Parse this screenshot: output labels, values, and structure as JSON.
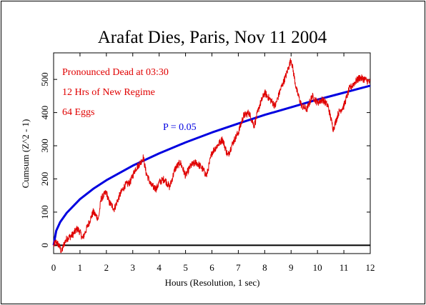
{
  "chart_data": {
    "type": "line",
    "title": "Arafat Dies, Paris, Nov 11 2004",
    "xlabel": "Hours (Resolution, 1 sec)",
    "ylabel": "Cumsum (Z^2 - 1)",
    "xlim": [
      0,
      12
    ],
    "ylim": [
      -25,
      580
    ],
    "x_ticks": [
      0,
      1,
      2,
      3,
      4,
      5,
      6,
      7,
      8,
      9,
      10,
      11,
      12
    ],
    "y_ticks": [
      0,
      100,
      200,
      300,
      400,
      500
    ],
    "grid": false,
    "annotations": [
      "Pronounced Dead at 03:30",
      "12 Hrs of New Regime",
      "64 Eggs"
    ],
    "series": [
      {
        "label": "P = 0.05",
        "color": "#0000e0",
        "form": "probability envelope",
        "x": [
          0,
          0.1,
          0.25,
          0.5,
          1,
          1.5,
          2,
          3,
          4,
          5,
          6,
          7,
          8,
          9,
          10,
          11,
          12
        ],
        "y": [
          0,
          44,
          70,
          98,
          139,
          170,
          196,
          240,
          277,
          310,
          340,
          367,
          393,
          416,
          439,
          460,
          481
        ]
      },
      {
        "color": "#e00000",
        "form": "cumulative deviation",
        "x": [
          0,
          0.1,
          0.2,
          0.3,
          0.4,
          0.5,
          0.7,
          0.9,
          1.0,
          1.1,
          1.3,
          1.5,
          1.7,
          1.8,
          2.0,
          2.1,
          2.3,
          2.5,
          2.7,
          2.9,
          3.1,
          3.3,
          3.4,
          3.5,
          3.7,
          3.9,
          4.0,
          4.2,
          4.4,
          4.6,
          4.8,
          5.0,
          5.2,
          5.4,
          5.6,
          5.8,
          6.0,
          6.2,
          6.4,
          6.6,
          6.8,
          7.0,
          7.2,
          7.4,
          7.6,
          7.8,
          8.0,
          8.2,
          8.4,
          8.6,
          8.8,
          9.0,
          9.05,
          9.2,
          9.4,
          9.6,
          9.8,
          10.0,
          10.2,
          10.4,
          10.6,
          10.8,
          11.0,
          11.2,
          11.4,
          11.6,
          11.8,
          12.0
        ],
        "y": [
          0,
          10,
          0,
          -20,
          5,
          20,
          30,
          50,
          40,
          20,
          60,
          100,
          80,
          140,
          160,
          130,
          110,
          150,
          180,
          190,
          230,
          250,
          265,
          220,
          180,
          170,
          190,
          200,
          175,
          230,
          250,
          210,
          240,
          250,
          235,
          210,
          280,
          300,
          320,
          270,
          310,
          340,
          390,
          400,
          360,
          420,
          460,
          440,
          420,
          470,
          510,
          560,
          540,
          470,
          420,
          410,
          450,
          430,
          440,
          420,
          350,
          400,
          420,
          470,
          490,
          505,
          500,
          490
        ]
      }
    ]
  }
}
